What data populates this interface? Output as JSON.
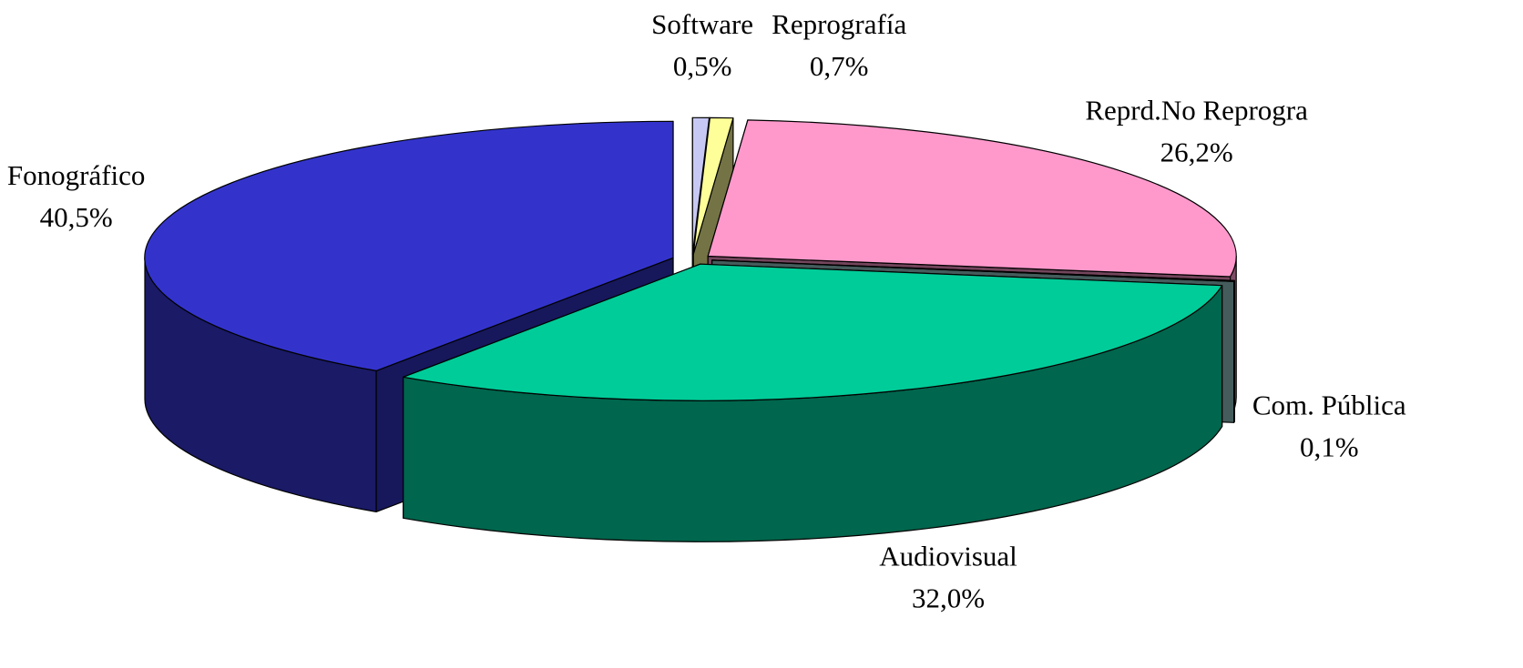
{
  "chart_data": {
    "type": "pie3d",
    "categories": [
      "Software",
      "Reprografía",
      "Reprd.No Reprogra",
      "Com. Pública",
      "Audiovisual",
      "Fonográfico"
    ],
    "values": [
      0.5,
      0.7,
      26.2,
      0.1,
      32.0,
      40.5
    ],
    "value_labels": [
      "0,5%",
      "0,7%",
      "26,2%",
      "0,1%",
      "32,0%",
      "40,5%"
    ],
    "colors": [
      "#c8c8f4",
      "#ffff99",
      "#ff99cc",
      "#99cccc",
      "#00cc99",
      "#3333cc"
    ]
  }
}
